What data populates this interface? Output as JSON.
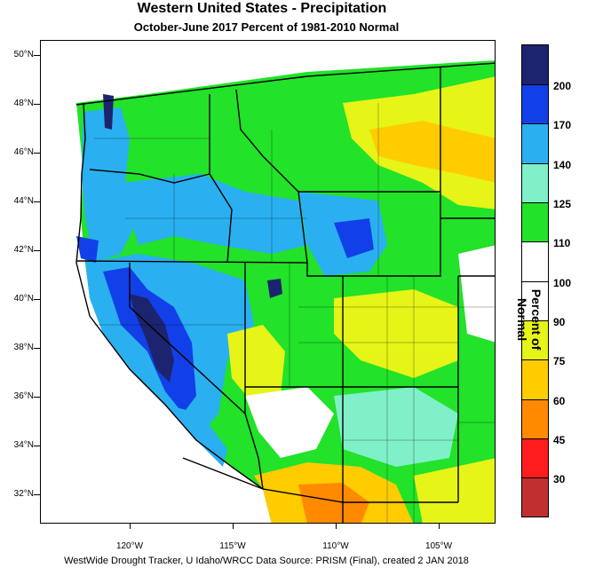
{
  "title": "Western United States - Precipitation",
  "subtitle": "October-June 2017  Percent of 1981-2010 Normal",
  "footer": "WestWide Drought Tracker, U Idaho/WRCC Data Source: PRISM (Final), created  2 JAN 2018",
  "latitudes": [
    "50°N",
    "48°N",
    "46°N",
    "44°N",
    "42°N",
    "40°N",
    "38°N",
    "36°N",
    "34°N",
    "32°N"
  ],
  "longitudes": [
    "120°W",
    "115°W",
    "110°W",
    "105°W"
  ],
  "colorbar": {
    "title": "Percent of Normal",
    "labels": [
      "200",
      "170",
      "140",
      "125",
      "110",
      "100",
      "90",
      "75",
      "60",
      "45",
      "30"
    ],
    "colors": [
      "#1c2470",
      "#1240e8",
      "#2ab0f0",
      "#80f0c8",
      "#22e22a",
      "#ffffff",
      "#ffffff",
      "#e6f418",
      "#ffcc00",
      "#ff8a00",
      "#ff1c1c",
      "#c03030"
    ]
  },
  "map": {
    "palette": {
      "dark_blue": "#1c2470",
      "blue": "#1240e8",
      "light_blue": "#2ab0f0",
      "aqua": "#80f0c8",
      "green": "#22e22a",
      "white": "#ffffff",
      "yellow": "#e6f418",
      "gold": "#ffcc00",
      "orange": "#ff8a00"
    }
  }
}
